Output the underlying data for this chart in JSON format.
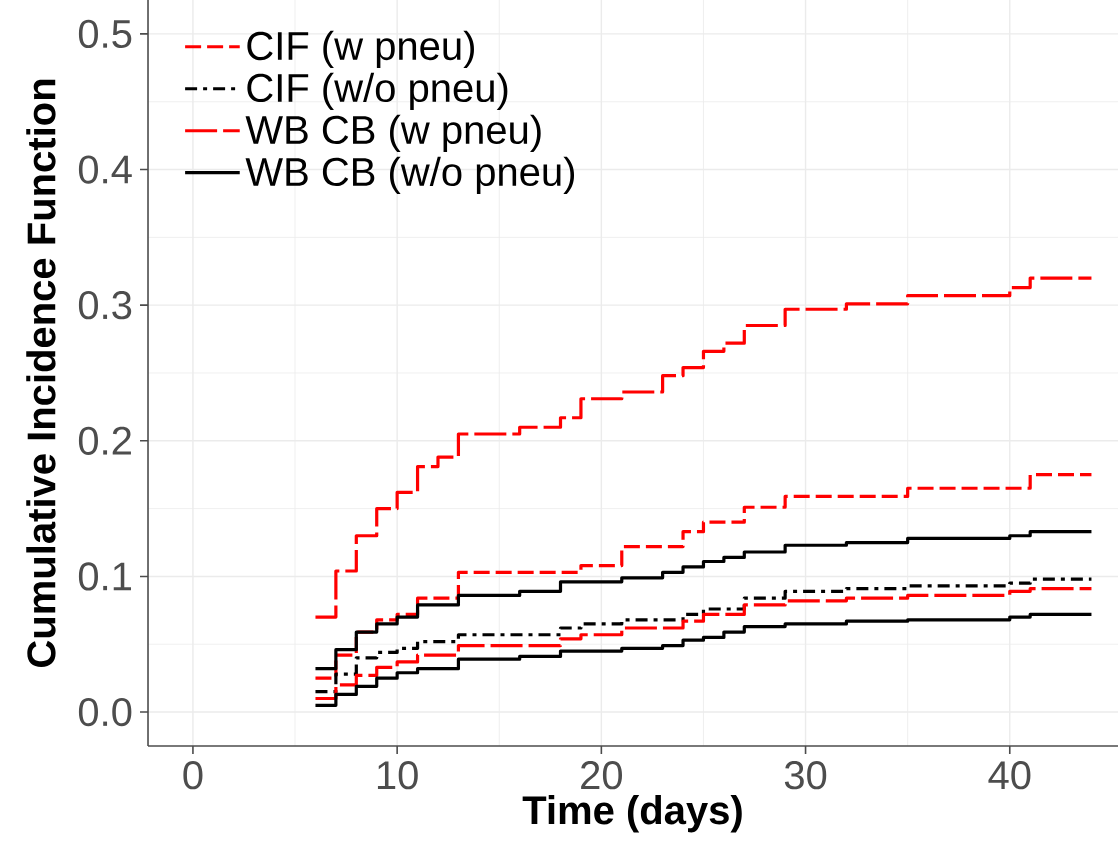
{
  "chart_data": {
    "type": "step",
    "xlabel": "Time (days)",
    "ylabel": "Cumulative Incidence Function",
    "x": [
      6,
      7,
      8,
      9,
      10,
      11,
      12,
      13,
      16,
      18,
      19,
      21,
      23,
      24,
      25,
      26,
      27,
      29,
      32,
      35,
      40,
      41,
      44
    ],
    "series": [
      {
        "name": "CIF (w pneu)",
        "color": "#ff0000",
        "line_style": "dashed",
        "values": [
          0.025,
          0.042,
          0.059,
          0.068,
          0.072,
          0.084,
          0.084,
          0.103,
          0.103,
          0.103,
          0.108,
          0.122,
          0.122,
          0.133,
          0.14,
          0.14,
          0.151,
          0.159,
          0.159,
          0.165,
          0.165,
          0.175,
          0.175
        ]
      },
      {
        "name": "CIF (w/o pneu)",
        "color": "#000000",
        "line_style": "dashdot",
        "values": [
          0.015,
          0.028,
          0.04,
          0.044,
          0.047,
          0.052,
          0.052,
          0.057,
          0.057,
          0.062,
          0.065,
          0.068,
          0.068,
          0.072,
          0.076,
          0.076,
          0.084,
          0.089,
          0.091,
          0.093,
          0.095,
          0.098,
          0.098
        ]
      },
      {
        "name": "WB CB (w pneu)",
        "color": "#ff0000",
        "line_style": "longdash",
        "values": [
          0.07,
          0.104,
          0.13,
          0.15,
          0.162,
          0.181,
          0.188,
          0.205,
          0.21,
          0.217,
          0.231,
          0.236,
          0.248,
          0.254,
          0.266,
          0.272,
          0.285,
          0.297,
          0.301,
          0.307,
          0.313,
          0.32,
          0.32
        ]
      },
      {
        "name": "WB CB (w/o pneu)",
        "color": "#000000",
        "line_style": "solid",
        "values": [
          0.032,
          0.046,
          0.059,
          0.065,
          0.07,
          0.079,
          0.079,
          0.086,
          0.089,
          0.096,
          0.096,
          0.099,
          0.103,
          0.107,
          0.111,
          0.114,
          0.118,
          0.123,
          0.125,
          0.128,
          0.13,
          0.133,
          0.133
        ]
      },
      {
        "color": "#ff0000",
        "line_style": "longdash",
        "values": [
          0.01,
          0.02,
          0.027,
          0.033,
          0.037,
          0.042,
          0.042,
          0.049,
          0.049,
          0.054,
          0.057,
          0.062,
          0.062,
          0.067,
          0.072,
          0.072,
          0.079,
          0.082,
          0.084,
          0.086,
          0.089,
          0.091,
          0.091
        ]
      },
      {
        "color": "#000000",
        "line_style": "solid",
        "values": [
          0.005,
          0.013,
          0.019,
          0.025,
          0.029,
          0.032,
          0.032,
          0.039,
          0.041,
          0.045,
          0.045,
          0.047,
          0.049,
          0.053,
          0.055,
          0.059,
          0.063,
          0.065,
          0.067,
          0.068,
          0.07,
          0.072,
          0.072
        ]
      }
    ],
    "xlim": [
      -2.2,
      45.3
    ],
    "ylim": [
      -0.025,
      0.525
    ],
    "xticks": [
      0,
      10,
      20,
      30,
      40
    ],
    "yticks": [
      {
        "value": 0,
        "label": "0.0"
      },
      {
        "value": 0.1,
        "label": "0.1"
      },
      {
        "value": 0.2,
        "label": "0.2"
      },
      {
        "value": 0.3,
        "label": "0.3"
      },
      {
        "value": 0.4,
        "label": "0.4"
      },
      {
        "value": 0.5,
        "label": "0.5"
      }
    ],
    "grid": true,
    "legend": "top left"
  }
}
